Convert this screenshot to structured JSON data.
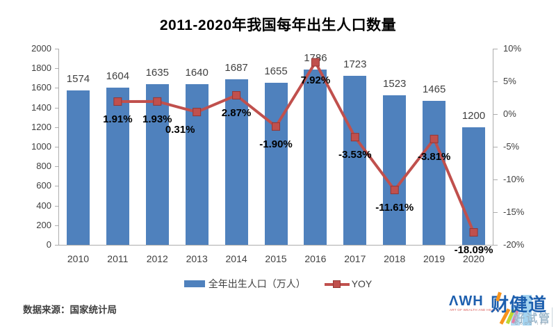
{
  "title": "2011-2020年我国每年出生人口数量",
  "source_note": "数据来源：国家统计局",
  "colors": {
    "bar": "#4F81BD",
    "line": "#C0504D",
    "marker_border": "#943634",
    "axis": "#ACACAC",
    "axis_label": "#404040",
    "bar_label": "#404040",
    "yoy_label": "#000000",
    "title": "#000000"
  },
  "chart_data": {
    "type": "bar",
    "combo": "bar+line",
    "title": "2011-2020年我国每年出生人口数量",
    "categories": [
      "2010",
      "2011",
      "2012",
      "2013",
      "2014",
      "2015",
      "2016",
      "2017",
      "2018",
      "2019",
      "2020"
    ],
    "series": [
      {
        "name": "全年出生人口（万人）",
        "chart": "bar",
        "axis": "left",
        "color": "#4F81BD",
        "values": [
          1574,
          1604,
          1635,
          1640,
          1687,
          1655,
          1786,
          1723,
          1523,
          1465,
          1200
        ],
        "value_labels": [
          "1574",
          "1604",
          "1635",
          "1640",
          "1687",
          "1655",
          "1786",
          "1723",
          "1523",
          "1465",
          "1200"
        ]
      },
      {
        "name": "YOY",
        "chart": "line",
        "axis": "right",
        "color": "#C0504D",
        "values": [
          null,
          1.91,
          1.93,
          0.31,
          2.87,
          -1.9,
          7.92,
          -3.53,
          -11.61,
          -3.81,
          -18.09
        ],
        "value_labels": [
          null,
          "1.91%",
          "1.93%",
          "0.31%",
          "2.87%",
          "-1.90%",
          "7.92%",
          "-3.53%",
          "-11.61%",
          "-3.81%",
          "-18.09%"
        ]
      }
    ],
    "left_axis": {
      "min": 0,
      "max": 2000,
      "step": 200,
      "ticks": [
        "2000",
        "1800",
        "1600",
        "1400",
        "1200",
        "1000",
        "800",
        "600",
        "400",
        "200",
        "0"
      ]
    },
    "right_axis": {
      "min": -20,
      "max": 10,
      "step": 5,
      "ticks": [
        "10%",
        "5%",
        "0%",
        "-5%",
        "-10%",
        "-15%",
        "-20%"
      ]
    },
    "grid": false,
    "legend_position": "bottom"
  },
  "legend": {
    "birth_label": "全年出生人口（万人）",
    "yoy_label": "YOY"
  },
  "logo": {
    "awh": "ΛWH",
    "awh_tagline": "ART OF WEALTH AND HEALTH",
    "brand": "财健道",
    "sub_brand": "好试管",
    "sub_brand_en": "GOOD IVF"
  }
}
